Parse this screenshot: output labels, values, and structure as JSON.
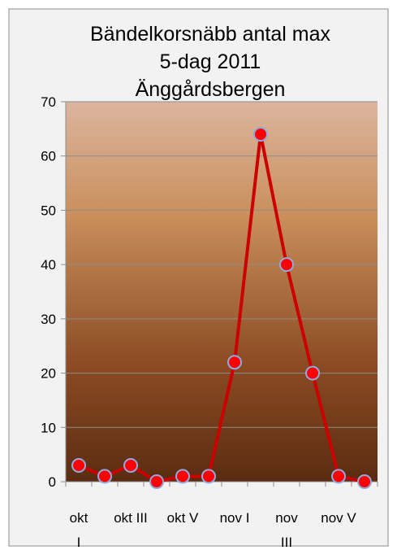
{
  "chart_data": {
    "type": "line",
    "title": [
      "Bändelkorsnäbb antal max",
      "5-dag 2011",
      "Änggårdsbergen"
    ],
    "categories": [
      "okt I",
      null,
      "okt III",
      null,
      "okt V",
      null,
      "nov I",
      null,
      "nov III",
      null,
      "nov V",
      null
    ],
    "series": [
      {
        "name": "Bändelkorsnäbb",
        "color": "#cc0000",
        "marker_color": "#ff0000",
        "values": [
          3,
          1,
          3,
          0,
          1,
          1,
          22,
          64,
          40,
          20,
          1,
          0
        ]
      }
    ],
    "ylim": [
      0,
      70
    ],
    "yticks": [
      0,
      10,
      20,
      30,
      40,
      50,
      60,
      70
    ],
    "grid": true
  }
}
